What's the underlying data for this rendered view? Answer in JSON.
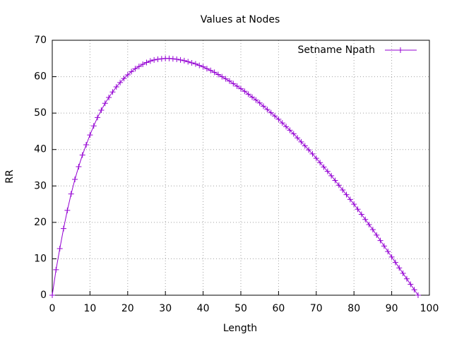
{
  "chart_data": {
    "type": "line",
    "title": "Values at Nodes",
    "x_label": "Length",
    "y_label": "RR",
    "x": [
      0,
      1,
      2,
      3,
      4,
      5,
      6,
      7,
      8,
      9,
      10,
      11,
      12,
      13,
      14,
      15,
      16,
      17,
      18,
      19,
      20,
      21,
      22,
      23,
      24,
      25,
      26,
      27,
      28,
      29,
      30,
      31,
      32,
      33,
      34,
      35,
      36,
      37,
      38,
      39,
      40,
      41,
      42,
      43,
      44,
      45,
      46,
      47,
      48,
      49,
      50,
      51,
      52,
      53,
      54,
      55,
      56,
      57,
      58,
      59,
      60,
      61,
      62,
      63,
      64,
      65,
      66,
      67,
      68,
      69,
      70,
      71,
      72,
      73,
      74,
      75,
      76,
      77,
      78,
      79,
      80,
      81,
      82,
      83,
      84,
      85,
      86,
      87,
      88,
      89,
      90,
      91,
      92,
      93,
      94,
      95,
      96,
      97
    ],
    "series": [
      {
        "name": "Setname Npath",
        "color": "#9400d3",
        "marker": "+",
        "values": [
          0,
          7,
          12.8,
          18.3,
          23.3,
          27.8,
          31.8,
          35.3,
          38.5,
          41.3,
          44,
          46.5,
          48.8,
          50.8,
          52.7,
          54.3,
          55.8,
          57.2,
          58.4,
          59.5,
          60.5,
          61.4,
          62.2,
          62.8,
          63.4,
          63.9,
          64.3,
          64.6,
          64.8,
          64.9,
          65,
          65,
          64.9,
          64.8,
          64.6,
          64.4,
          64.1,
          63.8,
          63.5,
          63.1,
          62.7,
          62.2,
          61.7,
          61.2,
          60.6,
          60,
          59.4,
          58.8,
          58.1,
          57.4,
          56.7,
          56,
          55.2,
          54.4,
          53.6,
          52.8,
          51.9,
          51,
          50.1,
          49.2,
          48.3,
          47.3,
          46.3,
          45.3,
          44.3,
          43.2,
          42.1,
          41,
          39.9,
          38.8,
          37.6,
          36.4,
          35.2,
          34,
          32.8,
          31.5,
          30.2,
          28.9,
          27.6,
          26.3,
          25,
          23.6,
          22.2,
          20.8,
          19.4,
          18,
          16.5,
          15,
          13.5,
          12,
          10.5,
          9,
          7.5,
          6,
          4.5,
          3,
          1.5,
          0
        ]
      }
    ],
    "xlim": [
      0,
      100
    ],
    "ylim": [
      0,
      70
    ],
    "xticks": [
      0,
      10,
      20,
      30,
      40,
      50,
      60,
      70,
      80,
      90,
      100
    ],
    "yticks": [
      0,
      10,
      20,
      30,
      40,
      50,
      60,
      70
    ],
    "grid": true,
    "legend_position": "top-right"
  }
}
